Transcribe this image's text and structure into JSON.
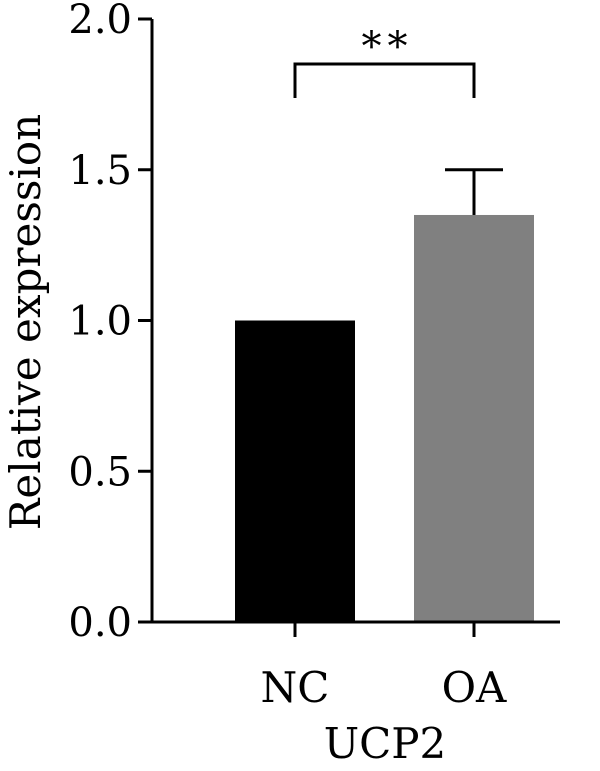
{
  "chart_data": {
    "type": "bar",
    "categories": [
      "NC",
      "OA"
    ],
    "values": [
      1.0,
      1.35
    ],
    "error_upper": [
      0,
      1.5
    ],
    "bar_colors": [
      "#000000",
      "#808080"
    ],
    "xlabel": "UCP2",
    "ylabel": "Relative expression",
    "ylim": [
      0,
      2.0
    ],
    "yticks": [
      0.0,
      0.5,
      1.0,
      1.5,
      2.0
    ],
    "ytick_labels": [
      "0.0",
      "0.5",
      "1.0",
      "1.5",
      "2.0"
    ],
    "significance": {
      "label": "**",
      "between": [
        "NC",
        "OA"
      ]
    },
    "grid": false
  }
}
